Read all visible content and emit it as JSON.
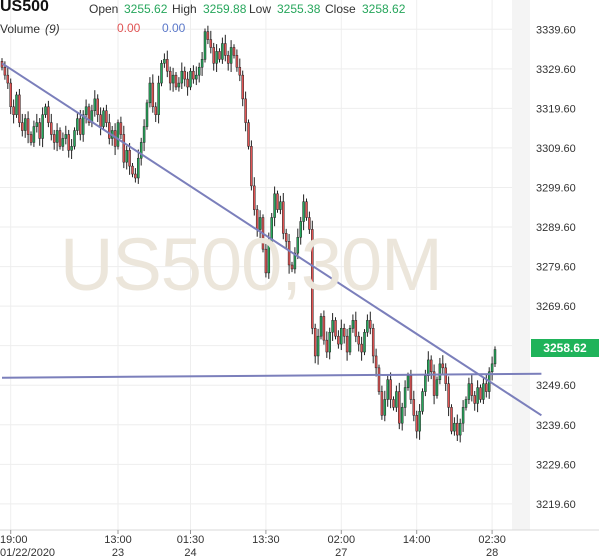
{
  "header": {
    "symbol": "US500",
    "open_label": "Open",
    "open_value": "3255.62",
    "high_label": "High",
    "high_value": "3259.88",
    "low_label": "Low",
    "low_value": "3255.38",
    "close_label": "Close",
    "close_value": "3258.62",
    "volume_label": "Volume",
    "volume_period": "(9)",
    "volume_value_1": "0.00",
    "volume_value_2": "0.00"
  },
  "watermark": "US500,30M",
  "current_price": "3258.62",
  "colors": {
    "up": "#26a65b",
    "down": "#e05454",
    "trendline": "#7b7fbb",
    "price_tag": "#1fb35a"
  },
  "chart_data": {
    "type": "candlestick",
    "title": "US500",
    "timeframe": "30M",
    "y_ticks": [
      3219.6,
      3229.6,
      3239.6,
      3249.6,
      3259.6,
      3269.6,
      3279.6,
      3289.6,
      3299.6,
      3309.6,
      3319.6,
      3329.6,
      3339.6
    ],
    "y_tick_labels": [
      "3219.60",
      "3229.60",
      "3239.60",
      "3249.60",
      "3259.60",
      "3269.60",
      "3279.60",
      "3289.60",
      "3299.60",
      "3309.60",
      "3319.60",
      "3329.60",
      "3339.60"
    ],
    "ylim": [
      3213,
      3347
    ],
    "x_ticks": [
      {
        "time": "19:00",
        "date": "01/22/2020",
        "bar": 3
      },
      {
        "time": "13:00",
        "date": "23",
        "bar": 40
      },
      {
        "time": "01:30",
        "date": "24",
        "bar": 65
      },
      {
        "time": "13:30",
        "date": "",
        "bar": 91
      },
      {
        "time": "02:00",
        "date": "27",
        "bar": 117
      },
      {
        "time": "14:00",
        "date": "",
        "bar": 143
      },
      {
        "time": "02:30",
        "date": "28",
        "bar": 169
      }
    ],
    "trendlines": [
      {
        "name": "descending",
        "from": [
          0,
          3331
        ],
        "to": [
          186,
          3242
        ]
      },
      {
        "name": "horizontal",
        "from": [
          0,
          3251.5
        ],
        "to": [
          186,
          3252.5
        ]
      }
    ],
    "closes": [
      3330,
      3328,
      3326,
      3320,
      3318,
      3323,
      3316,
      3314,
      3317,
      3313,
      3311,
      3315,
      3316,
      3312,
      3318,
      3320,
      3316,
      3313,
      3311,
      3314,
      3310,
      3312,
      3313,
      3309,
      3310,
      3314,
      3317,
      3313,
      3318,
      3320,
      3316,
      3319,
      3322,
      3318,
      3315,
      3319,
      3316,
      3312,
      3314,
      3310,
      3316,
      3313,
      3306,
      3309,
      3305,
      3303,
      3302,
      3307,
      3311,
      3315,
      3321,
      3326,
      3320,
      3318,
      3326,
      3331,
      3332,
      3329,
      3326,
      3328,
      3325,
      3326,
      3329,
      3327,
      3325,
      3329,
      3327,
      3328,
      3330,
      3332,
      3339,
      3337,
      3335,
      3331,
      3334,
      3332,
      3336,
      3333,
      3331,
      3335,
      3333,
      3330,
      3328,
      3322,
      3316,
      3310,
      3300,
      3294,
      3289,
      3292,
      3284,
      3278,
      3286,
      3292,
      3298,
      3294,
      3296,
      3288,
      3286,
      3280,
      3279,
      3283,
      3287,
      3291,
      3296,
      3292,
      3289,
      3264,
      3257,
      3262,
      3267,
      3261,
      3258,
      3263,
      3266,
      3262,
      3260,
      3264,
      3262,
      3258,
      3264,
      3266,
      3262,
      3260,
      3258,
      3263,
      3266,
      3264,
      3257,
      3254,
      3248,
      3242,
      3246,
      3251,
      3246,
      3244,
      3248,
      3240,
      3244,
      3249,
      3252,
      3246,
      3242,
      3238,
      3243,
      3248,
      3252,
      3256,
      3253,
      3247,
      3251,
      3255,
      3254,
      3250,
      3244,
      3238,
      3240,
      3237,
      3240,
      3244,
      3246,
      3250,
      3247,
      3245,
      3249,
      3246,
      3250,
      3248,
      3253,
      3255,
      3258.62
    ]
  }
}
